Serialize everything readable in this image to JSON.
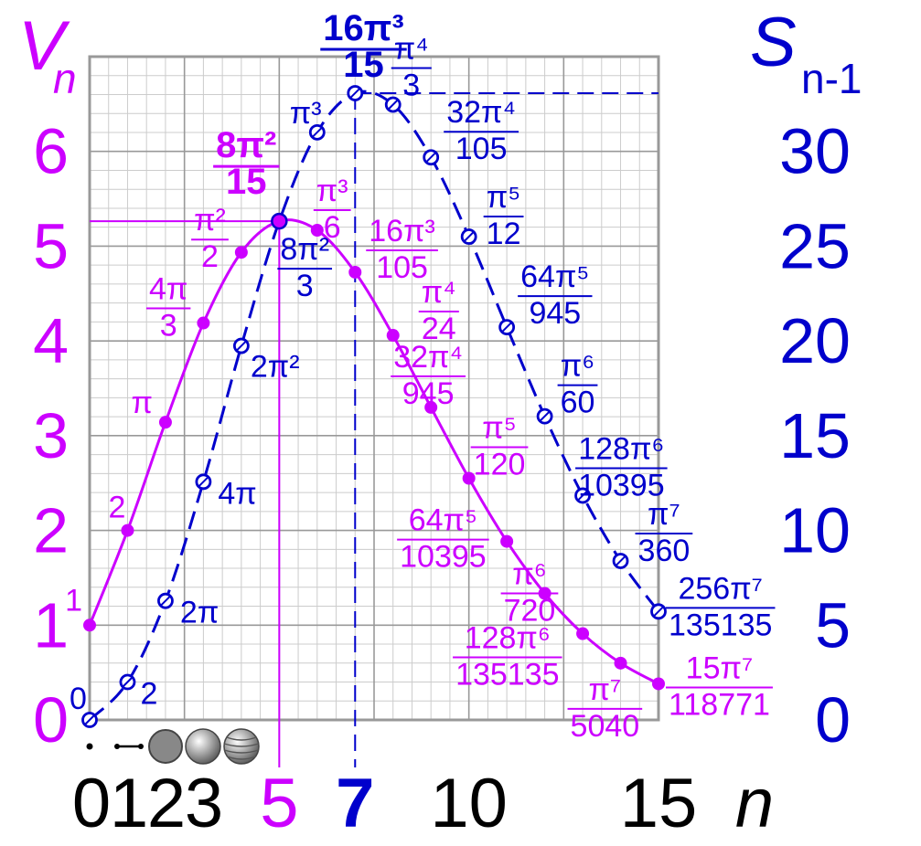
{
  "colors": {
    "volume": "#cc00ff",
    "surface": "#0000cc",
    "axis_text": "#000000",
    "grid_major": "#999999",
    "grid_minor": "#cccccc"
  },
  "chart_data": {
    "type": "line",
    "grid": true,
    "xlim": [
      0,
      15
    ],
    "ylim_left": [
      0,
      7
    ],
    "ylim_right": [
      0,
      35
    ],
    "x_axis": {
      "label": "n",
      "ticks": [
        "0",
        "1",
        "2",
        "3",
        "5",
        "7",
        "10",
        "15"
      ]
    },
    "left_axis": {
      "label": "V",
      "label_sub": "n",
      "ticks": [
        "0",
        "1",
        "2",
        "3",
        "4",
        "5",
        "6"
      ]
    },
    "right_axis": {
      "label": "S",
      "label_sub": "n-1",
      "ticks": [
        "0",
        "5",
        "10",
        "15",
        "20",
        "25",
        "30"
      ]
    },
    "peaks": [
      {
        "series": "volume",
        "x": 5,
        "value_label": "8π²/15",
        "x_label": "5"
      },
      {
        "series": "surface",
        "x": 7,
        "value_label": "16π³/15",
        "x_label": "7"
      }
    ],
    "icons": [
      "point-icon",
      "segment-icon",
      "disk-icon",
      "sphere-icon",
      "ball-icon"
    ],
    "series": [
      {
        "name": "V",
        "axis": "left",
        "style": "solid-filled-dots",
        "x": [
          0,
          1,
          2,
          3,
          4,
          5,
          6,
          7,
          8,
          9,
          10,
          11,
          12,
          13,
          14,
          15
        ],
        "values": [
          1,
          2,
          3.1416,
          4.1888,
          4.9348,
          5.2638,
          5.1677,
          4.7248,
          4.0587,
          3.2985,
          2.5502,
          1.8841,
          1.3353,
          0.9106,
          0.5993,
          0.3814
        ],
        "labels": [
          {
            "num": "1",
            "den": ""
          },
          {
            "num": "2",
            "den": ""
          },
          {
            "num": "π",
            "den": ""
          },
          {
            "num": "4π",
            "den": "3"
          },
          {
            "num": "π²",
            "den": "2"
          },
          {
            "num": "8π²",
            "den": "15"
          },
          {
            "num": "π³",
            "den": "6"
          },
          {
            "num": "16π³",
            "den": "105"
          },
          {
            "num": "π⁴",
            "den": "24"
          },
          {
            "num": "32π⁴",
            "den": "945"
          },
          {
            "num": "π⁵",
            "den": "120"
          },
          {
            "num": "64π⁵",
            "den": "10395"
          },
          {
            "num": "π⁶",
            "den": "720"
          },
          {
            "num": "128π⁶",
            "den": "135135"
          },
          {
            "num": "π⁷",
            "den": "5040"
          },
          {
            "num": "15π⁷",
            "den": "118771"
          }
        ]
      },
      {
        "name": "S",
        "axis": "right",
        "style": "dashed-open-circles",
        "x": [
          0,
          1,
          2,
          3,
          4,
          5,
          6,
          7,
          8,
          9,
          10,
          11,
          12,
          13,
          14,
          15
        ],
        "values": [
          0,
          2,
          6.2832,
          12.5664,
          19.7392,
          26.3189,
          31.0063,
          33.0734,
          32.4697,
          29.6866,
          25.5016,
          20.7251,
          16.0232,
          11.8382,
          8.3897,
          5.7216
        ],
        "labels": [
          {
            "num": "0",
            "den": ""
          },
          {
            "num": "2",
            "den": ""
          },
          {
            "num": "2π",
            "den": ""
          },
          {
            "num": "4π",
            "den": ""
          },
          {
            "num": "2π²",
            "den": ""
          },
          {
            "num": "8π²",
            "den": "3"
          },
          {
            "num": "π³",
            "den": ""
          },
          {
            "num": "16π³",
            "den": "15"
          },
          {
            "num": "π⁴",
            "den": "3"
          },
          {
            "num": "32π⁴",
            "den": "105"
          },
          {
            "num": "π⁵",
            "den": "12"
          },
          {
            "num": "64π⁵",
            "den": "945"
          },
          {
            "num": "π⁶",
            "den": "60"
          },
          {
            "num": "128π⁶",
            "den": "10395"
          },
          {
            "num": "π⁷",
            "den": "360"
          },
          {
            "num": "256π⁷",
            "den": "135135"
          }
        ]
      }
    ]
  }
}
